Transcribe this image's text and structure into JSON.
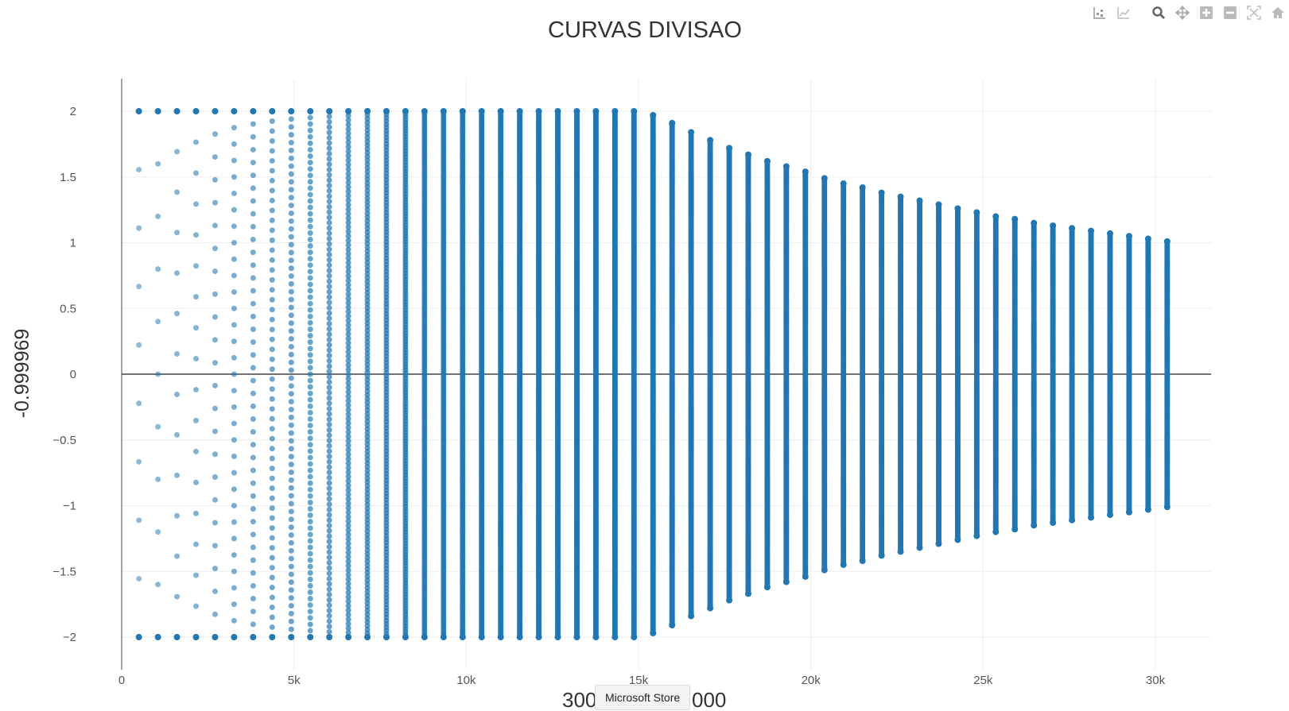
{
  "modebar": {
    "buttons": [
      {
        "name": "compare-data-icon"
      },
      {
        "name": "closest-data-icon"
      },
      {
        "name": "zoom-icon"
      },
      {
        "name": "pan-icon"
      },
      {
        "name": "zoom-in-icon"
      },
      {
        "name": "zoom-out-icon"
      },
      {
        "name": "autoscale-icon"
      },
      {
        "name": "reset-axes-home-icon"
      }
    ]
  },
  "tooltip": {
    "label": "Microsoft Store"
  },
  "chart_data": {
    "type": "scatter",
    "title": "CURVAS DIVISAO",
    "xlabel": "300",
    "xlabel_tail": "000",
    "ylabel": "-0.999969",
    "xlim": [
      0,
      31500
    ],
    "ylim": [
      -2.25,
      2.25
    ],
    "x_ticks": [
      0,
      5000,
      10000,
      15000,
      20000,
      25000,
      30000
    ],
    "x_tick_labels": [
      "0",
      "5k",
      "10k",
      "15k",
      "20k",
      "25k",
      "30k"
    ],
    "y_ticks": [
      2,
      1.5,
      1,
      0.5,
      0,
      -0.5,
      -1,
      -1.5,
      -2
    ],
    "y_tick_labels": [
      "2",
      "1.5",
      "1",
      "0.5",
      "0",
      "−0.5",
      "−1",
      "−1.5",
      "−2"
    ],
    "grid": true,
    "zero_line": true,
    "marker_color": "#1f77b4",
    "series": [
      {
        "columns": [
          {
            "x": 500,
            "ymax": 2
          },
          {
            "x": 1053,
            "ymax": 2
          },
          {
            "x": 1605,
            "ymax": 2
          },
          {
            "x": 2158,
            "ymax": 2
          },
          {
            "x": 2711,
            "ymax": 2
          },
          {
            "x": 3263,
            "ymax": 2
          },
          {
            "x": 3816,
            "ymax": 2
          },
          {
            "x": 4368,
            "ymax": 2
          },
          {
            "x": 4921,
            "ymax": 2
          },
          {
            "x": 5474,
            "ymax": 2
          },
          {
            "x": 6026,
            "ymax": 2
          },
          {
            "x": 6579,
            "ymax": 2
          },
          {
            "x": 7132,
            "ymax": 2
          },
          {
            "x": 7684,
            "ymax": 2
          },
          {
            "x": 8237,
            "ymax": 2
          },
          {
            "x": 8789,
            "ymax": 2
          },
          {
            "x": 9342,
            "ymax": 2
          },
          {
            "x": 9895,
            "ymax": 2
          },
          {
            "x": 10447,
            "ymax": 2
          },
          {
            "x": 11000,
            "ymax": 2
          },
          {
            "x": 11553,
            "ymax": 2
          },
          {
            "x": 12105,
            "ymax": 2
          },
          {
            "x": 12658,
            "ymax": 2
          },
          {
            "x": 13211,
            "ymax": 2
          },
          {
            "x": 13763,
            "ymax": 2
          },
          {
            "x": 14316,
            "ymax": 2
          },
          {
            "x": 14868,
            "ymax": 2
          },
          {
            "x": 15421,
            "ymax": 1.97
          },
          {
            "x": 15974,
            "ymax": 1.91
          },
          {
            "x": 16526,
            "ymax": 1.84
          },
          {
            "x": 17079,
            "ymax": 1.78
          },
          {
            "x": 17632,
            "ymax": 1.72
          },
          {
            "x": 18184,
            "ymax": 1.67
          },
          {
            "x": 18737,
            "ymax": 1.62
          },
          {
            "x": 19289,
            "ymax": 1.58
          },
          {
            "x": 19842,
            "ymax": 1.54
          },
          {
            "x": 20395,
            "ymax": 1.49
          },
          {
            "x": 20947,
            "ymax": 1.45
          },
          {
            "x": 21500,
            "ymax": 1.42
          },
          {
            "x": 22053,
            "ymax": 1.38
          },
          {
            "x": 22605,
            "ymax": 1.35
          },
          {
            "x": 23158,
            "ymax": 1.32
          },
          {
            "x": 23711,
            "ymax": 1.29
          },
          {
            "x": 24263,
            "ymax": 1.26
          },
          {
            "x": 24816,
            "ymax": 1.23
          },
          {
            "x": 25368,
            "ymax": 1.2
          },
          {
            "x": 25921,
            "ymax": 1.18
          },
          {
            "x": 26474,
            "ymax": 1.15
          },
          {
            "x": 27026,
            "ymax": 1.13
          },
          {
            "x": 27579,
            "ymax": 1.11
          },
          {
            "x": 28132,
            "ymax": 1.09
          },
          {
            "x": 28684,
            "ymax": 1.07
          },
          {
            "x": 29237,
            "ymax": 1.05
          },
          {
            "x": 29789,
            "ymax": 1.03
          },
          {
            "x": 30342,
            "ymax": 1.01
          }
        ]
      }
    ]
  }
}
